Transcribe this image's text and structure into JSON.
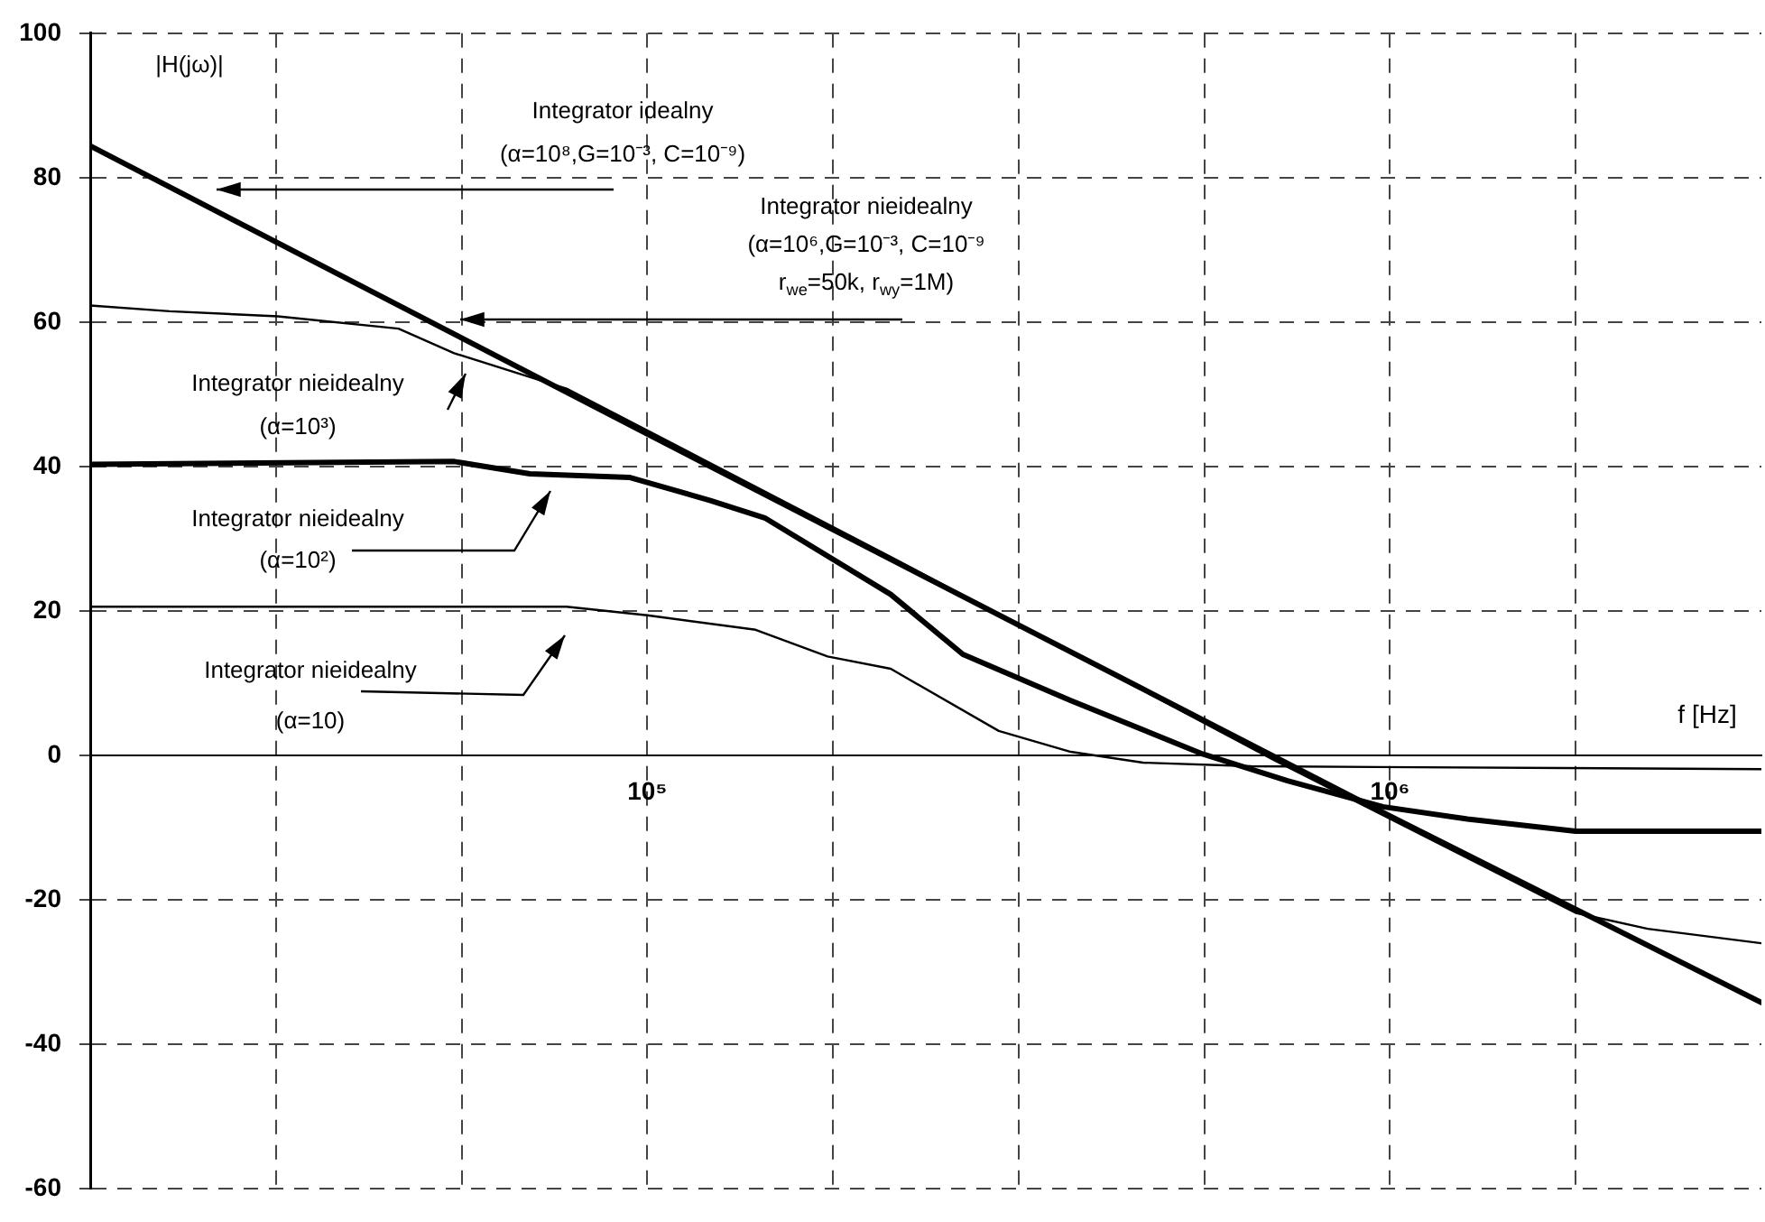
{
  "chart_data": {
    "type": "line",
    "xlabel": "f [Hz]",
    "ylabel": "|H(jω)|",
    "log": "x",
    "grid": true,
    "line_style": "solid",
    "marker": "none",
    "xlim": [
      17783,
      3162278
    ],
    "ylim": [
      -60,
      100
    ],
    "xticks": [
      {
        "value": 31623,
        "label": null
      },
      {
        "value": 56234,
        "label": null
      },
      {
        "value": 100000,
        "label": "10⁵"
      },
      {
        "value": 177828,
        "label": null
      },
      {
        "value": 316228,
        "label": null
      },
      {
        "value": 562341,
        "label": null
      },
      {
        "value": 1000000,
        "label": "10⁶"
      },
      {
        "value": 1778279,
        "label": null
      }
    ],
    "yticks": [
      -60,
      -40,
      -20,
      0,
      20,
      40,
      60,
      80,
      100
    ],
    "series": [
      {
        "color": "#000000",
        "x": [
          17783,
          100000,
          1000000,
          3162278
        ],
        "values": [
          84.4,
          44.5,
          -8.4,
          -34.2
        ]
      },
      {
        "color": "#000000",
        "x": [
          17783,
          22750,
          31800,
          46240,
          54950,
          77860,
          212700,
          699700,
          1778000,
          2223000,
          3162278
        ],
        "values": [
          62.3,
          61.5,
          60.8,
          59.1,
          55.7,
          50.8,
          27.5,
          -0.7,
          -21.8,
          -24,
          -26
        ]
      },
      {
        "color": "#000000",
        "x": [
          17783,
          54950,
          69500,
          94560,
          121600,
          143900,
          212700,
          266000,
          371700,
          559300,
          727800,
          977900,
          1271000,
          1778000,
          3162278
        ],
        "values": [
          40.3,
          40.7,
          39,
          38.5,
          35.3,
          32.9,
          22.3,
          14,
          7.6,
          0.2,
          -3.5,
          -7.1,
          -8.8,
          -10.5,
          -10.5
        ]
      },
      {
        "color": "#000000",
        "x": [
          17783,
          77860,
          100000,
          139900,
          174900,
          212700,
          297300,
          371700,
          464800,
          650400,
          3162278
        ],
        "values": [
          20.6,
          20.6,
          19.4,
          17.4,
          13.7,
          12,
          3.4,
          0.5,
          -1,
          -1.5,
          -1.9
        ]
      }
    ],
    "annotations": [
      "Integrator idealny\n(α=10⁸,G=10⁻³, C=10⁻⁹)",
      "Integrator nieidealny\n(α=10⁶,G=10⁻³, C=10⁻⁹\nr$_{we}$=50k, r$_{wy}$=1M)",
      "Integrator nieidealny\n(α=10³)",
      "Integrator nieidealny\n(α=10²)",
      "Integrator nieidealny\n(α=10)"
    ]
  }
}
